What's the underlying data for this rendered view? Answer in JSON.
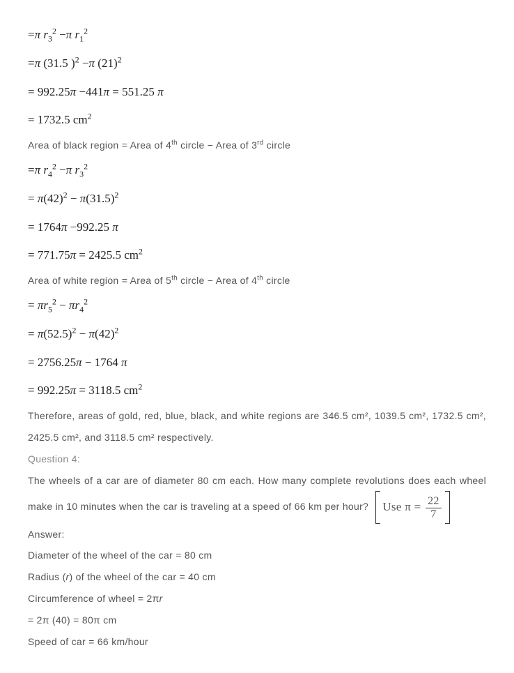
{
  "blue": {
    "eq1": "=π r₃² −π r₁²",
    "eq2": "=π (31.5 )² −π (21)²",
    "eq3": "= 992.25π −441π = 551.25 π",
    "eq4": "= 1732.5 cm²"
  },
  "black": {
    "intro_pre": "Area of black region = Area of 4",
    "intro_mid": " circle − Area of 3",
    "intro_post": " circle",
    "eq1": "=π r₄² −π r₃²",
    "eq2": "= π(42)² − π(31.5)²",
    "eq3": "= 1764π −992.25 π",
    "eq4": "= 771.75π = 2425.5 cm²"
  },
  "white": {
    "intro_pre": "Area of white region = Area of 5",
    "intro_mid": " circle − Area of 4",
    "intro_post": " circle",
    "eq1": "= πr₅² − πr₄²",
    "eq2": "= π(52.5)² − π(42)²",
    "eq3": "= 2756.25π − 1764 π",
    "eq4": "= 992.25π = 3118.5 cm²"
  },
  "conclusion": "Therefore, areas of gold, red, blue, black, and white regions are 346.5 cm², 1039.5 cm², 1732.5 cm², 2425.5 cm², and 3118.5 cm² respectively.",
  "q4": {
    "label": "Question 4:",
    "text": "The wheels of a car are of diameter 80 cm each. How many complete revolutions does each wheel make in 10 minutes when the car is traveling at a speed of 66 km per hour?",
    "use_pi_prefix": "Use π = ",
    "pi_num": "22",
    "pi_den": "7",
    "answer_label": "Answer:",
    "a1": "Diameter of the wheel of the car = 80 cm",
    "a2_pre": "Radius (",
    "a2_r": "r",
    "a2_post": ") of the wheel of the car = 40 cm",
    "a3_pre": "Circumference of wheel = 2π",
    "a3_r": "r",
    "a4": "= 2π (40) = 80π cm",
    "a5": "Speed of car = 66 km/hour"
  }
}
